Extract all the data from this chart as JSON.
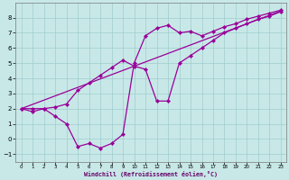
{
  "xlabel": "Windchill (Refroidissement éolien,°C)",
  "background_color": "#c8e8e8",
  "grid_color": "#a0cccc",
  "line_color": "#990099",
  "xlim_min": -0.5,
  "xlim_max": 23.5,
  "ylim_min": -1.5,
  "ylim_max": 9.0,
  "xticks": [
    0,
    1,
    2,
    3,
    4,
    5,
    6,
    7,
    8,
    9,
    10,
    11,
    12,
    13,
    14,
    15,
    16,
    17,
    18,
    19,
    20,
    21,
    22,
    23
  ],
  "yticks": [
    -1,
    0,
    1,
    2,
    3,
    4,
    5,
    6,
    7,
    8
  ],
  "hours": [
    0,
    1,
    2,
    3,
    4,
    5,
    6,
    7,
    8,
    9,
    10,
    11,
    12,
    13,
    14,
    15,
    16,
    17,
    18,
    19,
    20,
    21,
    22,
    23
  ],
  "line_zigzag": [
    2.0,
    1.8,
    2.0,
    1.5,
    1.0,
    -0.5,
    -0.3,
    -0.6,
    -0.3,
    0.3,
    5.0,
    6.8,
    7.3,
    7.5,
    7.0,
    7.1,
    6.8,
    7.1,
    7.4,
    7.6,
    7.9,
    8.1,
    8.3,
    8.5
  ],
  "line_straight": [
    2.0,
    2.28,
    2.56,
    2.84,
    3.12,
    3.4,
    3.68,
    3.96,
    4.24,
    4.52,
    4.8,
    5.08,
    5.36,
    5.64,
    5.92,
    6.2,
    6.48,
    6.76,
    7.04,
    7.32,
    7.6,
    7.88,
    8.16,
    8.44
  ],
  "line_hump": [
    2.0,
    2.0,
    2.0,
    2.1,
    2.3,
    3.2,
    3.7,
    4.2,
    4.7,
    5.2,
    4.8,
    4.6,
    2.5,
    2.5,
    5.0,
    5.5,
    6.0,
    6.5,
    7.0,
    7.3,
    7.6,
    7.9,
    8.1,
    8.4
  ]
}
